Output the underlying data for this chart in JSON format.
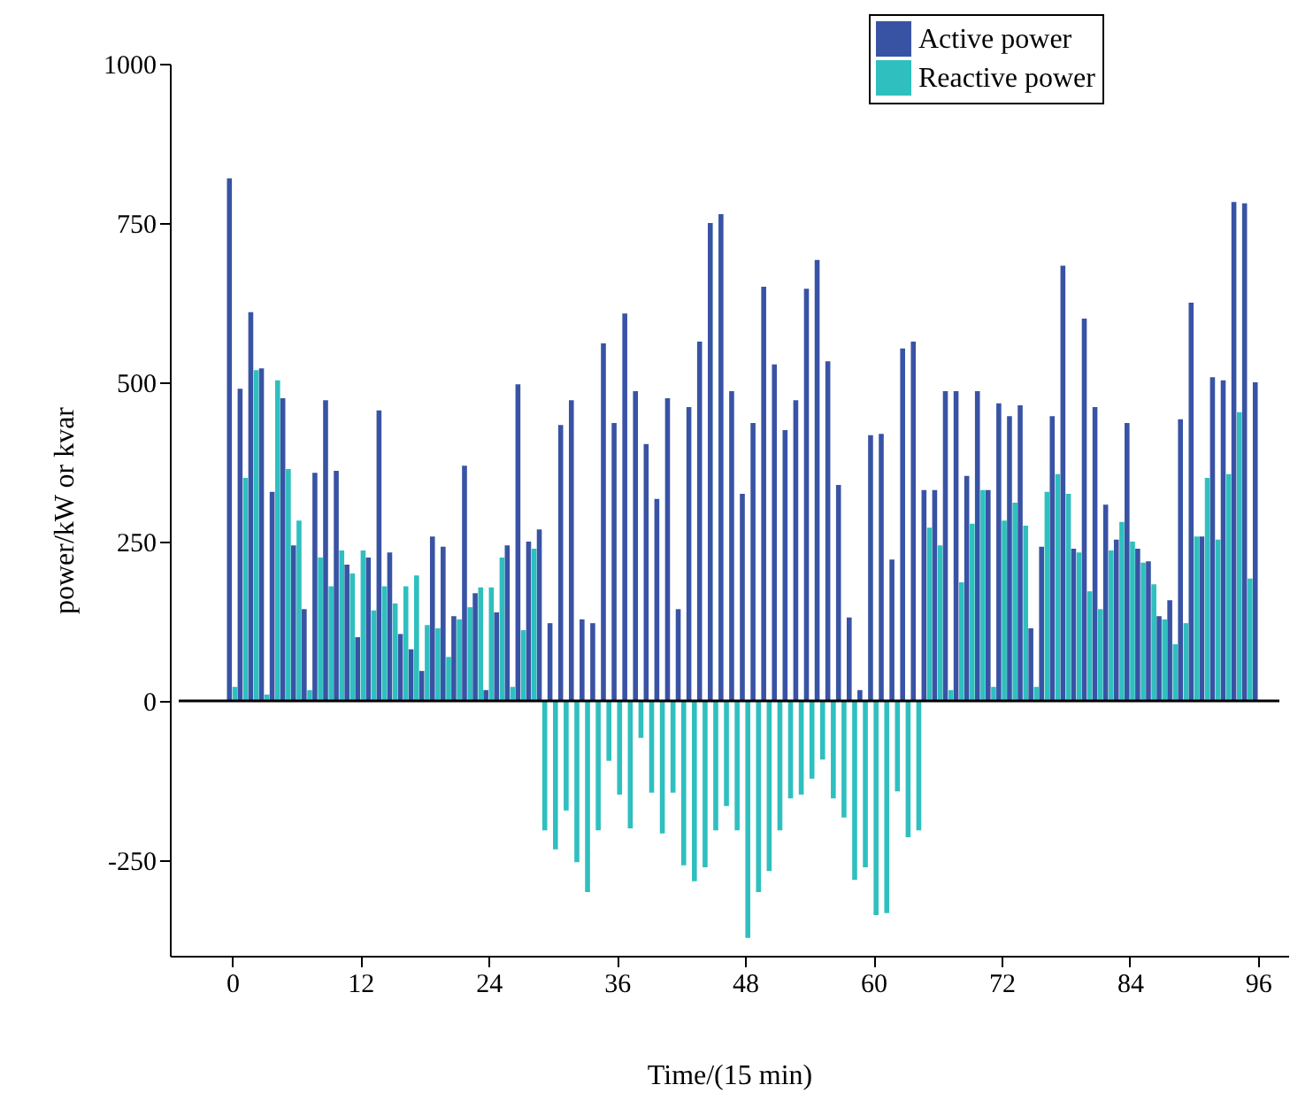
{
  "chart_data": {
    "type": "bar",
    "xlabel": "Time/(15 min)",
    "ylabel": "power/kW or kvar",
    "x": [
      0,
      1,
      2,
      3,
      4,
      5,
      6,
      7,
      8,
      9,
      10,
      11,
      12,
      13,
      14,
      15,
      16,
      17,
      18,
      19,
      20,
      21,
      22,
      23,
      24,
      25,
      26,
      27,
      28,
      29,
      30,
      31,
      32,
      33,
      34,
      35,
      36,
      37,
      38,
      39,
      40,
      41,
      42,
      43,
      44,
      45,
      46,
      47,
      48,
      49,
      50,
      51,
      52,
      53,
      54,
      55,
      56,
      57,
      58,
      59,
      60,
      61,
      62,
      63,
      64,
      65,
      66,
      67,
      68,
      69,
      70,
      71,
      72,
      73,
      74,
      75,
      76,
      77,
      78,
      79,
      80,
      81,
      82,
      83,
      84,
      85,
      86,
      87,
      88,
      89,
      90,
      91,
      92,
      93,
      94,
      95,
      96
    ],
    "series": [
      {
        "name": "Active power",
        "color": "#3953a4",
        "values": [
          820,
          490,
          610,
          522,
          328,
          475,
          244,
          144,
          358,
          472,
          361,
          214,
          100,
          225,
          456,
          233,
          105,
          81,
          47,
          258,
          242,
          133,
          369,
          169,
          17,
          139,
          244,
          497,
          250,
          269,
          122,
          433,
          472,
          128,
          122,
          561,
          436,
          608,
          486,
          403,
          317,
          475,
          144,
          461,
          564,
          750,
          764,
          486,
          325,
          436,
          650,
          528,
          425,
          472,
          647,
          692,
          533,
          339,
          131,
          17,
          417,
          419,
          222,
          553,
          564,
          331,
          331,
          486,
          486,
          353,
          486,
          331,
          467,
          447,
          464,
          114,
          242,
          447,
          683,
          239,
          600,
          461,
          308,
          253,
          436,
          239,
          219,
          133,
          158,
          442,
          625,
          258,
          508,
          503,
          783,
          781,
          500
        ]
      },
      {
        "name": "Reactive power",
        "color": "#2fbfbf",
        "values": [
          22,
          350,
          519,
          10,
          503,
          364,
          283,
          17,
          225,
          180,
          236,
          200,
          236,
          142,
          180,
          153,
          180,
          197,
          119,
          114,
          69,
          128,
          147,
          178,
          178,
          225,
          22,
          111,
          239,
          -203,
          -233,
          -172,
          -253,
          -300,
          -203,
          -94,
          -147,
          -200,
          -58,
          -144,
          -208,
          -144,
          -258,
          -283,
          -261,
          -203,
          -165,
          -203,
          -372,
          -300,
          -267,
          -203,
          -153,
          -147,
          -122,
          -92,
          -153,
          -183,
          -281,
          -261,
          -336,
          -333,
          -142,
          -214,
          -203,
          272,
          244,
          17,
          186,
          278,
          331,
          22,
          283,
          311,
          275,
          22,
          328,
          356,
          325,
          233,
          172,
          144,
          236,
          281,
          250,
          217,
          183,
          128,
          89,
          122,
          258,
          350,
          253,
          356,
          453,
          192,
          null
        ]
      }
    ],
    "xlim": [
      -5,
      98
    ],
    "xticks": [
      0,
      12,
      24,
      36,
      48,
      60,
      72,
      84,
      96
    ],
    "ylim": [
      -400,
      1000
    ],
    "yticks": [
      -250,
      0,
      250,
      500,
      750,
      1000
    ],
    "ref_lines": [
      {
        "axis": "y",
        "value": 0,
        "color": "#000000"
      }
    ],
    "grid": false,
    "legend": "top right"
  }
}
